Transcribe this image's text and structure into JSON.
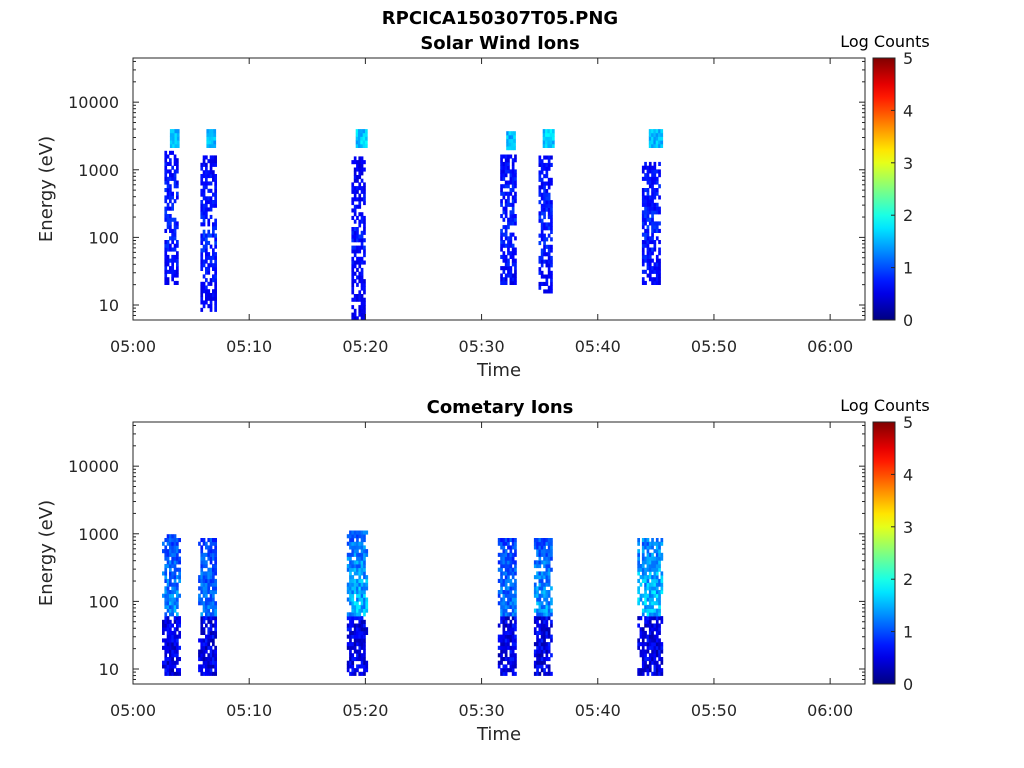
{
  "figure_title": "RPCICA150307T05.PNG",
  "chart_data": [
    {
      "type": "heatmap",
      "title": "Solar Wind Ions",
      "xlabel": "Time",
      "ylabel": "Energy (eV)",
      "y_scale": "log",
      "x_range": [
        "05:00",
        "06:03"
      ],
      "ylim": [
        6,
        45000
      ],
      "x_ticks": [
        "05:00",
        "05:10",
        "05:20",
        "05:30",
        "05:40",
        "05:50",
        "06:00"
      ],
      "y_ticks": [
        "10",
        "100",
        "1000",
        "10000"
      ],
      "colorbar": {
        "label": "Log Counts",
        "range": [
          0,
          5
        ],
        "ticks": [
          "0",
          "1",
          "2",
          "3",
          "4",
          "5"
        ],
        "colormap": "jet"
      },
      "grid": false,
      "bursts": [
        {
          "start": "05:02.5",
          "end": "05:04.0",
          "e_min": 20,
          "e_max": 1800,
          "peak_log_counts": 1.0,
          "beam_energy": 2800,
          "beam_log_counts": 1.6
        },
        {
          "start": "05:05.6",
          "end": "05:07.2",
          "e_min": 8,
          "e_max": 1500,
          "peak_log_counts": 1.0,
          "beam_energy": 2800,
          "beam_log_counts": 1.6
        },
        {
          "start": "05:18.4",
          "end": "05:20.1",
          "e_min": 6,
          "e_max": 1500,
          "peak_log_counts": 0.9,
          "beam_energy": 2800,
          "beam_log_counts": 1.7
        },
        {
          "start": "05:31.4",
          "end": "05:33.0",
          "e_min": 20,
          "e_max": 1500,
          "peak_log_counts": 1.0,
          "beam_energy": 2600,
          "beam_log_counts": 1.6
        },
        {
          "start": "05:34.5",
          "end": "05:36.2",
          "e_min": 15,
          "e_max": 1500,
          "peak_log_counts": 1.0,
          "beam_energy": 2800,
          "beam_log_counts": 1.7
        },
        {
          "start": "05:43.4",
          "end": "05:45.6",
          "e_min": 20,
          "e_max": 1200,
          "peak_log_counts": 1.0,
          "beam_energy": 2800,
          "beam_log_counts": 1.6
        }
      ]
    },
    {
      "type": "heatmap",
      "title": "Cometary Ions",
      "xlabel": "Time",
      "ylabel": "Energy (eV)",
      "y_scale": "log",
      "x_range": [
        "05:00",
        "06:03"
      ],
      "ylim": [
        6,
        45000
      ],
      "x_ticks": [
        "05:00",
        "05:10",
        "05:20",
        "05:30",
        "05:40",
        "05:50",
        "06:00"
      ],
      "y_ticks": [
        "10",
        "100",
        "1000",
        "10000"
      ],
      "colorbar": {
        "label": "Log Counts",
        "range": [
          0,
          5
        ],
        "ticks": [
          "0",
          "1",
          "2",
          "3",
          "4",
          "5"
        ],
        "colormap": "jet"
      },
      "grid": false,
      "bursts": [
        {
          "start": "05:02.5",
          "end": "05:04.0",
          "e_min": 8,
          "e_max": 900,
          "peak_log_counts": 1.6
        },
        {
          "start": "05:05.6",
          "end": "05:07.2",
          "e_min": 8,
          "e_max": 850,
          "peak_log_counts": 1.5
        },
        {
          "start": "05:18.4",
          "end": "05:20.0",
          "e_min": 8,
          "e_max": 1000,
          "peak_log_counts": 1.9
        },
        {
          "start": "05:31.4",
          "end": "05:33.0",
          "e_min": 8,
          "e_max": 800,
          "peak_log_counts": 1.5
        },
        {
          "start": "05:34.5",
          "end": "05:36.0",
          "e_min": 8,
          "e_max": 850,
          "peak_log_counts": 1.7
        },
        {
          "start": "05:43.4",
          "end": "05:45.6",
          "e_min": 8,
          "e_max": 850,
          "peak_log_counts": 2.0
        }
      ]
    }
  ]
}
